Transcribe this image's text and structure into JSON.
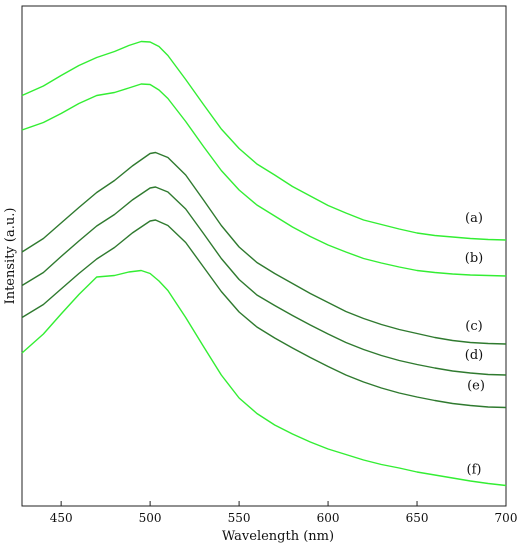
{
  "chart_data": {
    "type": "line",
    "title": "",
    "xlabel": "Wavelength (nm)",
    "ylabel": "Intensity (a.u.)",
    "xlim": [
      428,
      700
    ],
    "ylim": [
      0,
      1
    ],
    "x_ticks": [
      450,
      500,
      550,
      600,
      650,
      700
    ],
    "y_ticks_shown": false,
    "grid": false,
    "legend": "none",
    "series": [
      {
        "name": "(a)",
        "color": "#33ee33",
        "x": [
          428,
          440,
          450,
          460,
          470,
          480,
          488,
          495,
          500,
          505,
          510,
          520,
          530,
          540,
          550,
          560,
          570,
          580,
          590,
          600,
          610,
          620,
          630,
          640,
          650,
          660,
          670,
          680,
          690,
          700
        ],
        "y": [
          0.821,
          0.84,
          0.861,
          0.881,
          0.897,
          0.909,
          0.921,
          0.929,
          0.928,
          0.919,
          0.901,
          0.853,
          0.803,
          0.754,
          0.715,
          0.684,
          0.662,
          0.639,
          0.62,
          0.601,
          0.586,
          0.572,
          0.563,
          0.554,
          0.546,
          0.541,
          0.538,
          0.535,
          0.533,
          0.532
        ]
      },
      {
        "name": "(b)",
        "color": "#33ee33",
        "x": [
          428,
          440,
          450,
          460,
          470,
          480,
          488,
          495,
          500,
          505,
          510,
          520,
          530,
          540,
          550,
          560,
          570,
          580,
          590,
          600,
          610,
          620,
          630,
          640,
          650,
          660,
          670,
          680,
          690,
          700
        ],
        "y": [
          0.752,
          0.767,
          0.785,
          0.805,
          0.821,
          0.827,
          0.836,
          0.844,
          0.843,
          0.832,
          0.815,
          0.769,
          0.719,
          0.671,
          0.632,
          0.602,
          0.58,
          0.558,
          0.539,
          0.522,
          0.508,
          0.495,
          0.486,
          0.478,
          0.471,
          0.467,
          0.464,
          0.462,
          0.461,
          0.46
        ]
      },
      {
        "name": "(c)",
        "color": "#2f7a2f",
        "x": [
          428,
          440,
          450,
          460,
          470,
          480,
          490,
          500,
          503,
          510,
          520,
          530,
          540,
          550,
          560,
          570,
          580,
          590,
          600,
          610,
          620,
          630,
          640,
          650,
          660,
          670,
          680,
          690,
          700
        ],
        "y": [
          0.508,
          0.535,
          0.566,
          0.597,
          0.627,
          0.651,
          0.68,
          0.705,
          0.707,
          0.697,
          0.662,
          0.612,
          0.561,
          0.518,
          0.487,
          0.465,
          0.445,
          0.425,
          0.407,
          0.389,
          0.375,
          0.363,
          0.353,
          0.345,
          0.337,
          0.331,
          0.327,
          0.325,
          0.324
        ]
      },
      {
        "name": "(d)",
        "color": "#2f7a2f",
        "x": [
          428,
          440,
          450,
          460,
          470,
          480,
          490,
          500,
          503,
          510,
          520,
          530,
          540,
          550,
          560,
          570,
          580,
          590,
          600,
          610,
          620,
          630,
          640,
          650,
          660,
          670,
          680,
          690,
          700
        ],
        "y": [
          0.441,
          0.467,
          0.499,
          0.53,
          0.56,
          0.583,
          0.612,
          0.636,
          0.638,
          0.628,
          0.594,
          0.545,
          0.495,
          0.453,
          0.422,
          0.401,
          0.381,
          0.362,
          0.344,
          0.327,
          0.313,
          0.301,
          0.291,
          0.283,
          0.276,
          0.27,
          0.266,
          0.263,
          0.262
        ]
      },
      {
        "name": "(e)",
        "color": "#2f7a2f",
        "x": [
          428,
          440,
          450,
          460,
          470,
          480,
          490,
          500,
          503,
          510,
          520,
          530,
          540,
          550,
          560,
          570,
          580,
          590,
          600,
          610,
          620,
          630,
          640,
          650,
          660,
          670,
          680,
          690,
          700
        ],
        "y": [
          0.377,
          0.403,
          0.434,
          0.465,
          0.494,
          0.517,
          0.546,
          0.57,
          0.572,
          0.561,
          0.527,
          0.478,
          0.429,
          0.388,
          0.358,
          0.336,
          0.316,
          0.297,
          0.279,
          0.262,
          0.248,
          0.236,
          0.226,
          0.218,
          0.211,
          0.205,
          0.201,
          0.198,
          0.197
        ]
      },
      {
        "name": "(f)",
        "color": "#33ee33",
        "x": [
          428,
          440,
          450,
          460,
          470,
          480,
          488,
          495,
          500,
          505,
          510,
          520,
          530,
          540,
          550,
          560,
          570,
          580,
          590,
          600,
          610,
          620,
          630,
          640,
          650,
          660,
          670,
          680,
          690,
          700
        ],
        "y": [
          0.306,
          0.344,
          0.384,
          0.423,
          0.458,
          0.461,
          0.468,
          0.471,
          0.465,
          0.45,
          0.431,
          0.377,
          0.319,
          0.262,
          0.216,
          0.185,
          0.162,
          0.144,
          0.128,
          0.114,
          0.103,
          0.092,
          0.083,
          0.076,
          0.068,
          0.062,
          0.056,
          0.05,
          0.045,
          0.041
        ]
      }
    ]
  }
}
